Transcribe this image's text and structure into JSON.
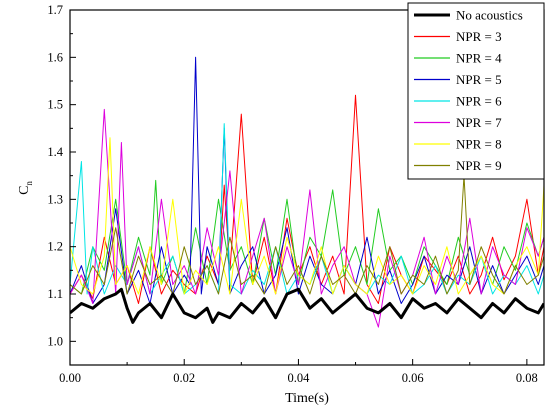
{
  "chart_data": {
    "type": "line",
    "xlabel": "Time(s)",
    "ylabel_main": "C",
    "ylabel_sub": "n",
    "xlim": [
      0,
      0.083
    ],
    "ylim": [
      0.95,
      1.7
    ],
    "xticks": [
      0.0,
      0.02,
      0.04,
      0.06,
      0.08
    ],
    "xtick_labels": [
      "0.00",
      "0.02",
      "0.04",
      "0.06",
      "0.08"
    ],
    "yticks": [
      1.0,
      1.1,
      1.2,
      1.3,
      1.4,
      1.5,
      1.6,
      1.7
    ],
    "ytick_labels": [
      "1.0",
      "1.1",
      "1.2",
      "1.3",
      "1.4",
      "1.5",
      "1.6",
      "1.7"
    ],
    "legend_position": "top-right",
    "grid": false,
    "series": [
      {
        "name": "No acoustics",
        "color": "#000000",
        "x": [
          0,
          0.002,
          0.004,
          0.006,
          0.008,
          0.009,
          0.01,
          0.011,
          0.012,
          0.014,
          0.016,
          0.018,
          0.02,
          0.022,
          0.024,
          0.025,
          0.026,
          0.028,
          0.03,
          0.032,
          0.034,
          0.036,
          0.038,
          0.04,
          0.042,
          0.044,
          0.046,
          0.048,
          0.05,
          0.052,
          0.054,
          0.056,
          0.058,
          0.06,
          0.062,
          0.064,
          0.066,
          0.068,
          0.07,
          0.072,
          0.074,
          0.076,
          0.078,
          0.08,
          0.082,
          0.083
        ],
        "y": [
          1.06,
          1.08,
          1.07,
          1.09,
          1.1,
          1.11,
          1.07,
          1.04,
          1.06,
          1.08,
          1.05,
          1.1,
          1.06,
          1.05,
          1.07,
          1.04,
          1.06,
          1.05,
          1.08,
          1.06,
          1.09,
          1.05,
          1.1,
          1.11,
          1.07,
          1.09,
          1.06,
          1.08,
          1.1,
          1.07,
          1.06,
          1.08,
          1.05,
          1.09,
          1.07,
          1.08,
          1.06,
          1.09,
          1.07,
          1.05,
          1.08,
          1.06,
          1.09,
          1.07,
          1.06,
          1.08
        ]
      },
      {
        "name": "NPR = 3",
        "color": "#ff0000",
        "x": [
          0,
          0.002,
          0.004,
          0.006,
          0.008,
          0.01,
          0.012,
          0.014,
          0.016,
          0.018,
          0.02,
          0.022,
          0.024,
          0.026,
          0.027,
          0.028,
          0.03,
          0.032,
          0.034,
          0.036,
          0.038,
          0.04,
          0.042,
          0.044,
          0.046,
          0.048,
          0.05,
          0.052,
          0.054,
          0.056,
          0.058,
          0.06,
          0.062,
          0.064,
          0.066,
          0.068,
          0.07,
          0.072,
          0.074,
          0.076,
          0.078,
          0.08,
          0.082,
          0.083
        ],
        "y": [
          1.1,
          1.14,
          1.09,
          1.22,
          1.12,
          1.16,
          1.08,
          1.2,
          1.1,
          1.15,
          1.12,
          1.1,
          1.18,
          1.12,
          1.33,
          1.15,
          1.48,
          1.12,
          1.22,
          1.1,
          1.26,
          1.14,
          1.2,
          1.12,
          1.18,
          1.1,
          1.52,
          1.12,
          1.08,
          1.2,
          1.14,
          1.1,
          1.18,
          1.15,
          1.12,
          1.18,
          1.1,
          1.14,
          1.22,
          1.13,
          1.18,
          1.3,
          1.14,
          1.2
        ]
      },
      {
        "name": "NPR = 4",
        "color": "#22cc22",
        "x": [
          0,
          0.002,
          0.004,
          0.006,
          0.008,
          0.01,
          0.012,
          0.014,
          0.015,
          0.016,
          0.018,
          0.02,
          0.022,
          0.024,
          0.026,
          0.028,
          0.03,
          0.032,
          0.034,
          0.036,
          0.038,
          0.04,
          0.042,
          0.044,
          0.046,
          0.048,
          0.05,
          0.052,
          0.054,
          0.056,
          0.058,
          0.06,
          0.062,
          0.064,
          0.066,
          0.068,
          0.07,
          0.072,
          0.074,
          0.076,
          0.078,
          0.08,
          0.082,
          0.083
        ],
        "y": [
          1.12,
          1.1,
          1.2,
          1.15,
          1.3,
          1.12,
          1.22,
          1.14,
          1.34,
          1.12,
          1.18,
          1.1,
          1.24,
          1.12,
          1.3,
          1.15,
          1.2,
          1.12,
          1.26,
          1.14,
          1.3,
          1.12,
          1.22,
          1.18,
          1.32,
          1.14,
          1.2,
          1.12,
          1.28,
          1.15,
          1.18,
          1.12,
          1.2,
          1.16,
          1.12,
          1.22,
          1.14,
          1.18,
          1.12,
          1.2,
          1.15,
          1.25,
          1.18,
          1.22
        ]
      },
      {
        "name": "NPR = 5",
        "color": "#0000cc",
        "x": [
          0,
          0.002,
          0.004,
          0.006,
          0.008,
          0.01,
          0.012,
          0.014,
          0.016,
          0.018,
          0.02,
          0.021,
          0.022,
          0.023,
          0.024,
          0.026,
          0.027,
          0.028,
          0.03,
          0.032,
          0.034,
          0.036,
          0.038,
          0.04,
          0.042,
          0.044,
          0.046,
          0.048,
          0.05,
          0.052,
          0.054,
          0.056,
          0.058,
          0.06,
          0.062,
          0.064,
          0.066,
          0.068,
          0.07,
          0.072,
          0.074,
          0.076,
          0.078,
          0.08,
          0.082,
          0.083
        ],
        "y": [
          1.1,
          1.16,
          1.08,
          1.12,
          1.28,
          1.1,
          1.15,
          1.08,
          1.2,
          1.1,
          1.14,
          1.12,
          1.6,
          1.1,
          1.2,
          1.12,
          1.45,
          1.1,
          1.16,
          1.2,
          1.1,
          1.14,
          1.24,
          1.1,
          1.18,
          1.12,
          1.1,
          1.16,
          1.12,
          1.22,
          1.1,
          1.15,
          1.08,
          1.12,
          1.18,
          1.1,
          1.14,
          1.12,
          1.2,
          1.1,
          1.16,
          1.1,
          1.14,
          1.18,
          1.12,
          1.16
        ]
      },
      {
        "name": "NPR = 6",
        "color": "#00e5e5",
        "x": [
          0,
          0.002,
          0.003,
          0.004,
          0.006,
          0.008,
          0.01,
          0.012,
          0.014,
          0.016,
          0.018,
          0.02,
          0.022,
          0.024,
          0.026,
          0.027,
          0.028,
          0.03,
          0.032,
          0.034,
          0.036,
          0.038,
          0.04,
          0.042,
          0.044,
          0.046,
          0.048,
          0.05,
          0.052,
          0.054,
          0.056,
          0.058,
          0.06,
          0.062,
          0.064,
          0.066,
          0.068,
          0.07,
          0.072,
          0.074,
          0.076,
          0.078,
          0.08,
          0.082,
          0.083
        ],
        "y": [
          1.12,
          1.38,
          1.1,
          1.2,
          1.1,
          1.16,
          1.12,
          1.2,
          1.1,
          1.14,
          1.18,
          1.1,
          1.12,
          1.16,
          1.1,
          1.46,
          1.12,
          1.1,
          1.15,
          1.12,
          1.2,
          1.1,
          1.14,
          1.12,
          1.18,
          1.1,
          1.16,
          1.12,
          1.1,
          1.14,
          1.12,
          1.18,
          1.1,
          1.12,
          1.16,
          1.1,
          1.14,
          1.12,
          1.18,
          1.1,
          1.14,
          1.12,
          1.16,
          1.1,
          1.14
        ]
      },
      {
        "name": "NPR = 7",
        "color": "#dd00dd",
        "x": [
          0,
          0.002,
          0.004,
          0.006,
          0.008,
          0.009,
          0.01,
          0.012,
          0.014,
          0.016,
          0.018,
          0.02,
          0.022,
          0.024,
          0.026,
          0.028,
          0.03,
          0.032,
          0.034,
          0.036,
          0.038,
          0.04,
          0.042,
          0.044,
          0.046,
          0.048,
          0.05,
          0.052,
          0.054,
          0.056,
          0.058,
          0.06,
          0.062,
          0.064,
          0.066,
          0.068,
          0.07,
          0.072,
          0.074,
          0.076,
          0.078,
          0.08,
          0.082,
          0.083
        ],
        "y": [
          1.1,
          1.14,
          1.08,
          1.49,
          1.1,
          1.42,
          1.12,
          1.2,
          1.1,
          1.3,
          1.12,
          1.16,
          1.1,
          1.24,
          1.14,
          1.36,
          1.1,
          1.18,
          1.26,
          1.1,
          1.2,
          1.12,
          1.32,
          1.1,
          1.16,
          1.2,
          1.12,
          1.1,
          1.03,
          1.18,
          1.1,
          1.14,
          1.22,
          1.1,
          1.18,
          1.12,
          1.26,
          1.1,
          1.2,
          1.14,
          1.12,
          1.24,
          1.18,
          1.22
        ]
      },
      {
        "name": "NPR = 8",
        "color": "#ffff00",
        "x": [
          0,
          0.002,
          0.004,
          0.006,
          0.007,
          0.008,
          0.01,
          0.012,
          0.014,
          0.016,
          0.018,
          0.02,
          0.022,
          0.024,
          0.026,
          0.028,
          0.03,
          0.032,
          0.034,
          0.036,
          0.038,
          0.04,
          0.042,
          0.044,
          0.046,
          0.048,
          0.05,
          0.052,
          0.054,
          0.056,
          0.058,
          0.06,
          0.062,
          0.064,
          0.066,
          0.068,
          0.07,
          0.072,
          0.074,
          0.076,
          0.078,
          0.08,
          0.082,
          0.083
        ],
        "y": [
          1.2,
          1.12,
          1.1,
          1.18,
          1.43,
          1.12,
          1.16,
          1.1,
          1.2,
          1.12,
          1.3,
          1.1,
          1.15,
          1.12,
          1.2,
          1.1,
          1.3,
          1.12,
          1.18,
          1.1,
          1.22,
          1.14,
          1.12,
          1.2,
          1.1,
          1.16,
          1.12,
          1.1,
          1.18,
          1.12,
          1.14,
          1.1,
          1.16,
          1.12,
          1.2,
          1.1,
          1.14,
          1.18,
          1.12,
          1.1,
          1.16,
          1.2,
          1.14,
          1.33
        ]
      },
      {
        "name": "NPR = 9",
        "color": "#808000",
        "x": [
          0,
          0.002,
          0.004,
          0.006,
          0.008,
          0.01,
          0.012,
          0.014,
          0.016,
          0.018,
          0.02,
          0.022,
          0.024,
          0.026,
          0.028,
          0.03,
          0.032,
          0.034,
          0.036,
          0.038,
          0.04,
          0.042,
          0.044,
          0.046,
          0.048,
          0.05,
          0.052,
          0.054,
          0.056,
          0.058,
          0.06,
          0.062,
          0.064,
          0.066,
          0.068,
          0.069,
          0.07,
          0.072,
          0.074,
          0.076,
          0.078,
          0.08,
          0.082,
          0.083
        ],
        "y": [
          1.12,
          1.1,
          1.16,
          1.12,
          1.24,
          1.1,
          1.18,
          1.12,
          1.14,
          1.1,
          1.2,
          1.12,
          1.16,
          1.1,
          1.22,
          1.12,
          1.14,
          1.1,
          1.2,
          1.12,
          1.16,
          1.1,
          1.18,
          1.12,
          1.14,
          1.1,
          1.16,
          1.12,
          1.2,
          1.1,
          1.14,
          1.12,
          1.18,
          1.1,
          1.15,
          1.35,
          1.12,
          1.2,
          1.14,
          1.1,
          1.16,
          1.12,
          1.14,
          1.18
        ]
      }
    ]
  }
}
